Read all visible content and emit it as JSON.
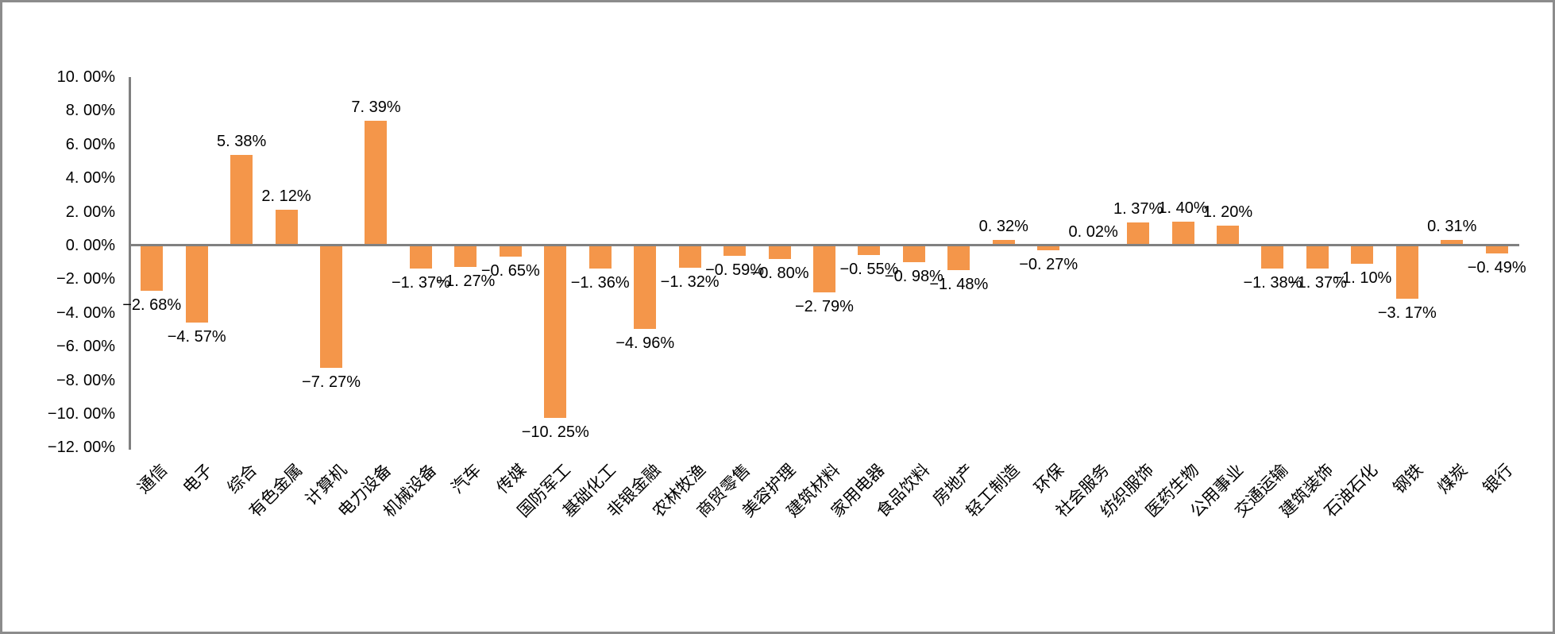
{
  "frame": {
    "background": "#FFFFFF",
    "border_color": "#8C8C8C"
  },
  "chart_data": {
    "type": "bar",
    "title": "",
    "xlabel": "",
    "ylabel": "",
    "legend": "none",
    "grid": "off",
    "bar_color": "#F4964A",
    "axis_color": "#808080",
    "categories": [
      "通信",
      "电子",
      "综合",
      "有色金属",
      "计算机",
      "电力设备",
      "机械设备",
      "汽车",
      "传媒",
      "国防军工",
      "基础化工",
      "非银金融",
      "农林牧渔",
      "商贸零售",
      "美容护理",
      "建筑材料",
      "家用电器",
      "食品饮料",
      "房地产",
      "轻工制造",
      "环保",
      "社会服务",
      "纺织服饰",
      "医药生物",
      "公用事业",
      "交通运输",
      "建筑装饰",
      "石油石化",
      "钢铁",
      "煤炭",
      "银行"
    ],
    "values": [
      -2.68,
      -4.57,
      5.38,
      2.12,
      -7.27,
      7.39,
      -1.37,
      -1.27,
      -0.65,
      -10.25,
      -1.36,
      -4.96,
      -1.32,
      -0.59,
      -0.8,
      -2.79,
      -0.55,
      -0.98,
      -1.48,
      0.32,
      -0.27,
      0.02,
      1.37,
      1.4,
      1.2,
      -1.38,
      -1.37,
      -1.1,
      -3.17,
      0.31,
      -0.49
    ],
    "data_labels": [
      "−2. 68%",
      "−4. 57%",
      "5. 38%",
      "2. 12%",
      "−7. 27%",
      "7. 39%",
      "−1. 37%",
      "−1. 27%",
      "−0. 65%",
      "−10. 25%",
      "−1. 36%",
      "−4. 96%",
      "−1. 32%",
      "−0. 59%",
      "−0. 80%",
      "−2. 79%",
      "−0. 55%",
      "−0. 98%",
      "−1. 48%",
      "0. 32%",
      "−0. 27%",
      "0. 02%",
      "1. 37%",
      "1. 40%",
      "1. 20%",
      "−1. 38%",
      "−1. 37%",
      "−1. 10%",
      "−3. 17%",
      "0. 31%",
      "−0. 49%"
    ],
    "y_axis": {
      "ylim": [
        -12,
        10
      ],
      "tick_step": 2,
      "tick_values": [
        10,
        8,
        6,
        4,
        2,
        0,
        -2,
        -4,
        -6,
        -8,
        -10,
        -12
      ],
      "tick_labels": [
        "10. 00%",
        "8. 00%",
        "6. 00%",
        "4. 00%",
        "2. 00%",
        "0. 00%",
        "−2. 00%",
        "−4. 00%",
        "−6. 00%",
        "−8. 00%",
        "−10. 00%",
        "−12. 00%"
      ]
    }
  }
}
